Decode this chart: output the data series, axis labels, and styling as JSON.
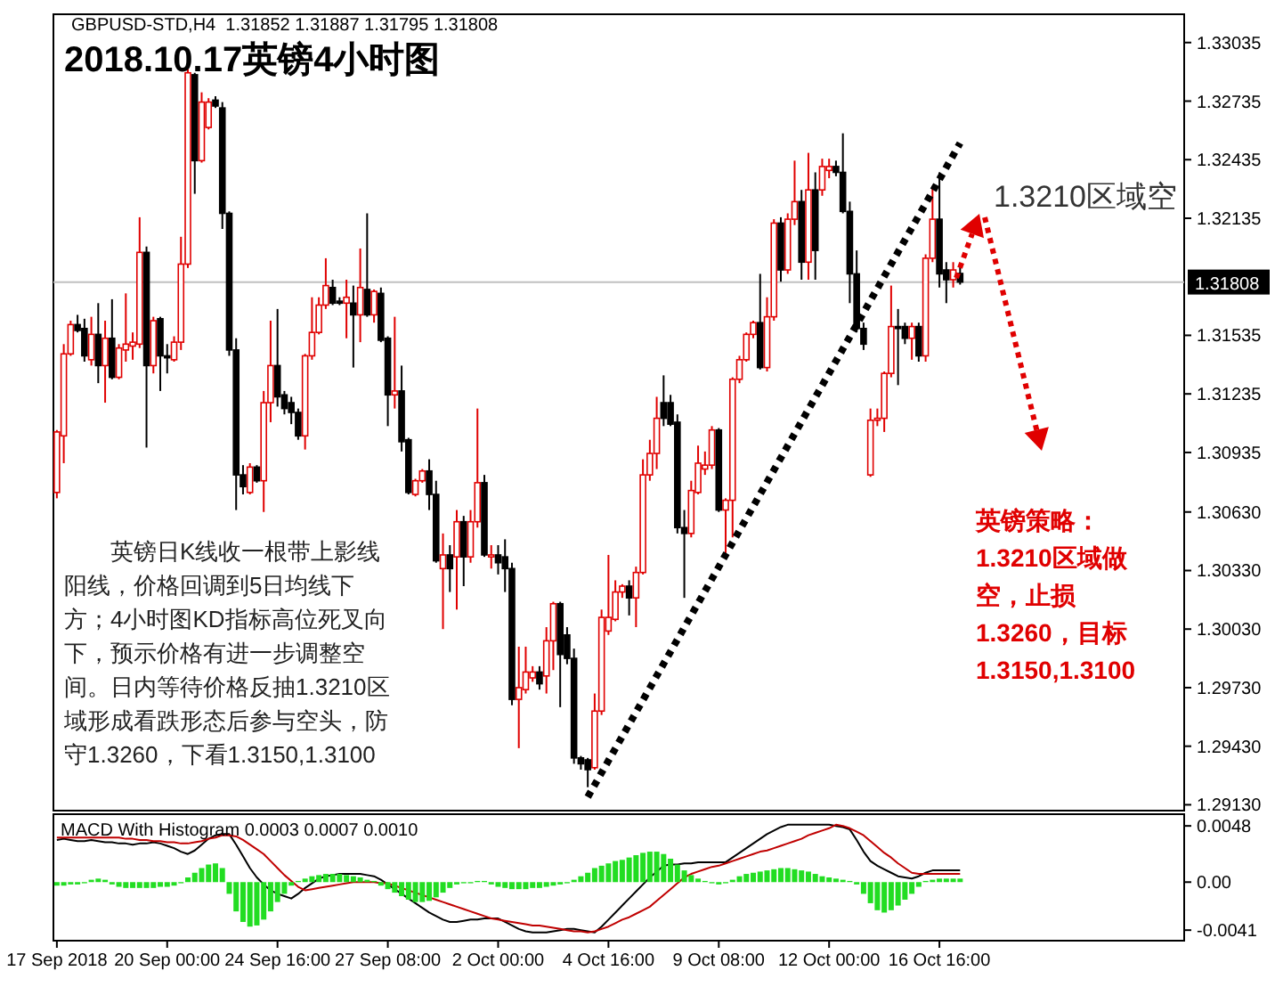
{
  "chart_data": [
    {
      "type": "candlestick",
      "title": "2018.10.17英镑4小时图",
      "categories": [
        null,
        null,
        null,
        null,
        null,
        null,
        null,
        null,
        null,
        null,
        null,
        null,
        null,
        null,
        null,
        null,
        null,
        null,
        null,
        null,
        null,
        null,
        null,
        null,
        null,
        null,
        null,
        null,
        null,
        null,
        null,
        null,
        null,
        null,
        null,
        null,
        null,
        null,
        null,
        null,
        null,
        null,
        null,
        null,
        null,
        null,
        null,
        null,
        null,
        null,
        null,
        null,
        null,
        null,
        null,
        null,
        null,
        null,
        null,
        null,
        null,
        null,
        null,
        null,
        null,
        null,
        null,
        null,
        null,
        null,
        null,
        null,
        null,
        null,
        null,
        null,
        null,
        null,
        null,
        null,
        null,
        null,
        null,
        null,
        null,
        null,
        null,
        null,
        null,
        null,
        null,
        null,
        null,
        null,
        null,
        null,
        null,
        null,
        null,
        null,
        null,
        null,
        null,
        null,
        null,
        null,
        null,
        null,
        null,
        null,
        null,
        null,
        null,
        null,
        null,
        null,
        null,
        null,
        null,
        null,
        null,
        null,
        null,
        null,
        null,
        null,
        null,
        null,
        null,
        null,
        null,
        null,
        null,
        null,
        null,
        null,
        null,
        null,
        null,
        null,
        null,
        null,
        null,
        null,
        null,
        null,
        null,
        null,
        null,
        null,
        null,
        null,
        null,
        null,
        null,
        null,
        null,
        null,
        null,
        null,
        null,
        null,
        null,
        null
      ],
      "ohlc": [
        [
          1.3073,
          1.3105,
          1.307,
          1.3104
        ],
        [
          1.3102,
          1.3149,
          1.3088,
          1.3144
        ],
        [
          1.3144,
          1.3161,
          1.3143,
          1.3159
        ],
        [
          1.3159,
          1.3164,
          1.3155,
          1.3156
        ],
        [
          1.3157,
          1.3162,
          1.314,
          1.3143
        ],
        [
          1.3141,
          1.3163,
          1.3138,
          1.3154
        ],
        [
          1.3154,
          1.317,
          1.3129,
          1.3138
        ],
        [
          1.3138,
          1.3161,
          1.3119,
          1.3152
        ],
        [
          1.3152,
          1.3172,
          1.3131,
          1.3132
        ],
        [
          1.3132,
          1.3149,
          1.3131,
          1.3147
        ],
        [
          1.3146,
          1.3175,
          1.314,
          1.3149
        ],
        [
          1.3148,
          1.3155,
          1.3141,
          1.315
        ],
        [
          1.3149,
          1.3214,
          1.3147,
          1.3196
        ],
        [
          1.3196,
          1.3199,
          1.3096,
          1.3138
        ],
        [
          1.3138,
          1.3163,
          1.3134,
          1.3161
        ],
        [
          1.3162,
          1.3163,
          1.3125,
          1.3143
        ],
        [
          1.3143,
          1.3149,
          1.3134,
          1.3142
        ],
        [
          1.3141,
          1.3153,
          1.314,
          1.315
        ],
        [
          1.315,
          1.3204,
          1.3146,
          1.319
        ],
        [
          1.319,
          1.329,
          1.3188,
          1.3288
        ],
        [
          1.3287,
          1.3288,
          1.3226,
          1.3243
        ],
        [
          1.3243,
          1.3278,
          1.3242,
          1.3273
        ],
        [
          1.326,
          1.3275,
          1.3259,
          1.3273
        ],
        [
          1.3274,
          1.3276,
          1.327,
          1.3271
        ],
        [
          1.327,
          1.3273,
          1.3208,
          1.3216
        ],
        [
          1.3216,
          1.3217,
          1.3143,
          1.3146
        ],
        [
          1.3146,
          1.3152,
          1.3064,
          1.3082
        ],
        [
          1.3082,
          1.3087,
          1.3072,
          1.3076
        ],
        [
          1.3073,
          1.3088,
          1.3072,
          1.3086
        ],
        [
          1.3086,
          1.3087,
          1.3078,
          1.3079
        ],
        [
          1.3079,
          1.3125,
          1.3063,
          1.3119
        ],
        [
          1.3119,
          1.3161,
          1.3109,
          1.3138
        ],
        [
          1.3138,
          1.3167,
          1.3117,
          1.3122
        ],
        [
          1.3123,
          1.3125,
          1.3113,
          1.3116
        ],
        [
          1.3119,
          1.3122,
          1.3108,
          1.3114
        ],
        [
          1.3114,
          1.3116,
          1.31,
          1.3102
        ],
        [
          1.3102,
          1.3144,
          1.3095,
          1.3143
        ],
        [
          1.3143,
          1.3173,
          1.3141,
          1.3155
        ],
        [
          1.3155,
          1.3173,
          1.3154,
          1.3169
        ],
        [
          1.3169,
          1.3193,
          1.3167,
          1.3179
        ],
        [
          1.3178,
          1.3182,
          1.3169,
          1.317
        ],
        [
          1.3171,
          1.3173,
          1.3169,
          1.317
        ],
        [
          1.317,
          1.3182,
          1.3152,
          1.3173
        ],
        [
          1.317,
          1.3179,
          1.3137,
          1.3164
        ],
        [
          1.3164,
          1.3198,
          1.315,
          1.3178
        ],
        [
          1.3177,
          1.3216,
          1.3163,
          1.3164
        ],
        [
          1.3164,
          1.3177,
          1.316,
          1.3176
        ],
        [
          1.3175,
          1.3178,
          1.315,
          1.3151
        ],
        [
          1.3152,
          1.3153,
          1.3107,
          1.3123
        ],
        [
          1.3123,
          1.3163,
          1.3116,
          1.3125
        ],
        [
          1.3125,
          1.3138,
          1.3094,
          1.3099
        ],
        [
          1.31,
          1.3101,
          1.3072,
          1.3073
        ],
        [
          1.3072,
          1.308,
          1.3071,
          1.3079
        ],
        [
          1.3079,
          1.3085,
          1.3078,
          1.3084
        ],
        [
          1.3084,
          1.309,
          1.3064,
          1.3072
        ],
        [
          1.3072,
          1.3079,
          1.3037,
          1.3038
        ],
        [
          1.3034,
          1.3052,
          1.3003,
          1.3041
        ],
        [
          1.3041,
          1.3046,
          1.3022,
          1.3034
        ],
        [
          1.304,
          1.3064,
          1.3013,
          1.3058
        ],
        [
          1.3058,
          1.3061,
          1.3025,
          1.304
        ],
        [
          1.304,
          1.3064,
          1.3037,
          1.3058
        ],
        [
          1.3058,
          1.3116,
          1.3055,
          1.3078
        ],
        [
          1.3078,
          1.3082,
          1.304,
          1.3041
        ],
        [
          1.304,
          1.3046,
          1.3034,
          1.3041
        ],
        [
          1.3041,
          1.3046,
          1.3031,
          1.3037
        ],
        [
          1.304,
          1.3049,
          1.3022,
          1.3034
        ],
        [
          1.3034,
          1.3037,
          1.2964,
          1.2967
        ],
        [
          1.2967,
          1.2994,
          1.2942,
          1.2973
        ],
        [
          1.2972,
          1.2994,
          1.297,
          1.2981
        ],
        [
          1.2978,
          1.2984,
          1.2976,
          1.2981
        ],
        [
          1.2981,
          1.2984,
          1.2972,
          1.2975
        ],
        [
          1.2979,
          1.3004,
          1.297,
          1.2997
        ],
        [
          1.2997,
          1.3017,
          1.2982,
          1.3016
        ],
        [
          1.3016,
          1.3017,
          1.2963,
          1.299
        ],
        [
          1.3,
          1.3004,
          1.2985,
          1.2988
        ],
        [
          1.2988,
          1.2993,
          1.2934,
          1.2937
        ],
        [
          1.2937,
          1.2938,
          1.2931,
          1.2934
        ],
        [
          1.2936,
          1.2937,
          1.2922,
          1.2931
        ],
        [
          1.2932,
          1.297,
          1.2931,
          1.2961
        ],
        [
          1.2961,
          1.3013,
          1.2959,
          1.3009
        ],
        [
          1.3002,
          1.3041,
          1.3,
          1.3009
        ],
        [
          1.3008,
          1.3028,
          1.3007,
          1.3022
        ],
        [
          1.3022,
          1.3026,
          1.3019,
          1.3025
        ],
        [
          1.3025,
          1.3028,
          1.301,
          1.3019
        ],
        [
          1.3019,
          1.3035,
          1.3004,
          1.3032
        ],
        [
          1.3032,
          1.309,
          1.3031,
          1.3082
        ],
        [
          1.3082,
          1.31,
          1.3079,
          1.3093
        ],
        [
          1.3093,
          1.3122,
          1.3085,
          1.3111
        ],
        [
          1.3119,
          1.3133,
          1.3107,
          1.3111
        ],
        [
          1.3119,
          1.3123,
          1.3107,
          1.3108
        ],
        [
          1.3109,
          1.3113,
          1.3052,
          1.3055
        ],
        [
          1.3055,
          1.3064,
          1.3019,
          1.3052
        ],
        [
          1.3052,
          1.3079,
          1.305,
          1.3074
        ],
        [
          1.3073,
          1.3097,
          1.3072,
          1.3088
        ],
        [
          1.3085,
          1.3094,
          1.3082,
          1.3087
        ],
        [
          1.3087,
          1.3107,
          1.3085,
          1.3105
        ],
        [
          1.3105,
          1.3106,
          1.3063,
          1.3064
        ],
        [
          1.3064,
          1.307,
          1.304,
          1.3069
        ],
        [
          1.3069,
          1.3132,
          1.305,
          1.3131
        ],
        [
          1.3131,
          1.3143,
          1.3129,
          1.3141
        ],
        [
          1.3141,
          1.3155,
          1.314,
          1.3154
        ],
        [
          1.3154,
          1.3161,
          1.3152,
          1.316
        ],
        [
          1.316,
          1.3185,
          1.3136,
          1.3137
        ],
        [
          1.3137,
          1.3173,
          1.3135,
          1.3163
        ],
        [
          1.3163,
          1.3213,
          1.3161,
          1.3211
        ],
        [
          1.3211,
          1.3214,
          1.3181,
          1.3187
        ],
        [
          1.3187,
          1.3216,
          1.3185,
          1.3213
        ],
        [
          1.3213,
          1.3243,
          1.321,
          1.3222
        ],
        [
          1.3222,
          1.3228,
          1.3182,
          1.3191
        ],
        [
          1.3191,
          1.3247,
          1.3182,
          1.3228
        ],
        [
          1.3228,
          1.3237,
          1.3182,
          1.3197
        ],
        [
          1.3228,
          1.3244,
          1.3225,
          1.324
        ],
        [
          1.3238,
          1.3244,
          1.3234,
          1.324
        ],
        [
          1.324,
          1.3243,
          1.3235,
          1.3237
        ],
        [
          1.3237,
          1.3257,
          1.3216,
          1.3217
        ],
        [
          1.3217,
          1.3222,
          1.317,
          1.3185
        ],
        [
          1.3185,
          1.3197,
          1.3155,
          1.3157
        ],
        [
          1.3157,
          1.316,
          1.3146,
          1.3149
        ],
        [
          1.3082,
          1.3116,
          1.3081,
          1.311
        ],
        [
          1.311,
          1.3116,
          1.3107,
          1.3111
        ],
        [
          1.3111,
          1.3135,
          1.3104,
          1.3134
        ],
        [
          1.3134,
          1.3179,
          1.3132,
          1.3158
        ],
        [
          1.3158,
          1.3167,
          1.3128,
          1.3157
        ],
        [
          1.3158,
          1.316,
          1.3149,
          1.3152
        ],
        [
          1.3152,
          1.316,
          1.3141,
          1.3158
        ],
        [
          1.3158,
          1.316,
          1.314,
          1.3143
        ],
        [
          1.3143,
          1.3195,
          1.314,
          1.3193
        ],
        [
          1.3193,
          1.323,
          1.3191,
          1.3213
        ],
        [
          1.3213,
          1.3237,
          1.3178,
          1.3185
        ],
        [
          1.3187,
          1.3191,
          1.317,
          1.3182
        ],
        [
          1.3182,
          1.3191,
          1.3178,
          1.3187
        ],
        [
          1.31852,
          1.31887,
          1.31795,
          1.31808
        ],
        null,
        null,
        null,
        null,
        null,
        null,
        null,
        null,
        null,
        null,
        null,
        null,
        null,
        null,
        null,
        null,
        null,
        null,
        null,
        null,
        null,
        null,
        null,
        null,
        null,
        null,
        null,
        null,
        null,
        null,
        null,
        null
      ],
      "colors": [
        "#e00000",
        "#e00000",
        "#e00000",
        "#000000",
        "#000000",
        "#e00000",
        "#000000",
        "#e00000",
        "#000000",
        "#e00000",
        "#e00000",
        "#e00000",
        "#e00000",
        "#000000",
        "#e00000",
        "#000000",
        "#000000",
        "#e00000",
        "#e00000",
        "#e00000",
        "#000000",
        "#e00000",
        "#e00000",
        "#000000",
        "#000000",
        "#000000",
        "#000000",
        "#000000",
        "#e00000",
        "#000000",
        "#e00000",
        "#e00000",
        "#000000",
        "#000000",
        "#000000",
        "#000000",
        "#e00000",
        "#e00000",
        "#e00000",
        "#e00000",
        "#000000",
        "#000000",
        "#e00000",
        "#000000",
        "#e00000",
        "#000000",
        "#e00000",
        "#000000",
        "#000000",
        "#e00000",
        "#000000",
        "#000000",
        "#e00000",
        "#e00000",
        "#000000",
        "#000000",
        "#e00000",
        "#000000",
        "#e00000",
        "#000000",
        "#e00000",
        "#e00000",
        "#000000",
        "#e00000",
        "#000000",
        "#000000",
        "#000000",
        "#e00000",
        "#e00000",
        "#e00000",
        "#000000",
        "#e00000",
        "#e00000",
        "#000000",
        "#000000",
        "#000000",
        "#000000",
        "#000000",
        "#e00000",
        "#e00000",
        "#e00000",
        "#e00000",
        "#e00000",
        "#000000",
        "#e00000",
        "#e00000",
        "#e00000",
        "#e00000",
        "#000000",
        "#000000",
        "#000000",
        "#000000",
        "#e00000",
        "#e00000",
        "#e00000",
        "#e00000",
        "#000000",
        "#e00000",
        "#e00000",
        "#e00000",
        "#e00000",
        "#e00000",
        "#000000",
        "#e00000",
        "#e00000",
        "#000000",
        "#e00000",
        "#e00000",
        "#000000",
        "#e00000",
        "#000000",
        "#e00000",
        "#e00000",
        "#000000",
        "#000000",
        "#000000",
        "#000000",
        "#000000",
        "#e00000",
        "#e00000",
        "#e00000",
        "#e00000",
        "#000000",
        "#000000",
        "#e00000",
        "#000000",
        "#e00000",
        "#e00000",
        "#000000",
        "#000000",
        "#e00000",
        "#000000",
        null,
        null,
        null,
        null,
        null,
        null,
        null,
        null,
        null,
        null,
        null,
        null,
        null,
        null,
        null,
        null,
        null,
        null,
        null,
        null,
        null,
        null,
        null,
        null,
        null,
        null,
        null,
        null,
        null,
        null,
        null,
        null
      ],
      "ylim": [
        1.291,
        1.3318
      ],
      "yticks": [
        1.33035,
        1.32735,
        1.32435,
        1.32135,
        1.31535,
        1.31235,
        1.30935,
        {
          "value": 1.3063,
          "label": "1.30630"
        },
        {
          "value": 1.3033,
          "label": "1.30330"
        },
        {
          "value": 1.3003,
          "label": "1.30030"
        },
        {
          "value": 1.2973,
          "label": "1.29730"
        },
        {
          "value": 1.2943,
          "label": "1.29430"
        },
        {
          "value": 1.2913,
          "label": "1.29130"
        }
      ],
      "tick_labels": "y",
      "ref_lines": [
        {
          "axis": "y",
          "value": 1.31808,
          "label": "1.31808",
          "color": "#c0c0c0"
        }
      ],
      "series": [
        {
          "type": "line",
          "values": [
            null,
            null,
            null,
            null,
            null,
            null,
            null,
            null,
            null,
            null,
            null,
            null,
            null,
            null,
            null,
            null,
            null,
            null,
            null,
            null,
            null,
            null,
            null,
            null,
            null,
            null,
            null,
            null,
            null,
            null,
            null,
            null,
            null,
            null,
            null,
            null,
            null,
            null,
            null,
            null,
            null,
            null,
            null,
            null,
            null,
            null,
            null,
            null,
            null,
            null,
            null,
            null,
            null,
            null,
            null,
            null,
            null,
            null,
            null,
            null,
            null,
            null,
            null,
            null,
            null,
            null,
            null,
            null,
            null,
            null,
            null,
            null,
            null,
            null,
            null,
            null,
            null,
            1.2917,
            null,
            null,
            null,
            null,
            null,
            null,
            null,
            null,
            null,
            null,
            null,
            null,
            null,
            null,
            null,
            null,
            null,
            null,
            null,
            null,
            null,
            null,
            null,
            null,
            null,
            null,
            null,
            null,
            null,
            null,
            null,
            null,
            null,
            null,
            null,
            null,
            null,
            null,
            null,
            null,
            null,
            null,
            null,
            null,
            null,
            null,
            null,
            null,
            null,
            null,
            null,
            null,
            null,
            1.3252,
            null,
            null,
            null,
            null,
            null,
            null,
            null,
            null,
            null,
            null,
            null,
            null,
            null,
            null,
            null,
            null,
            null,
            null,
            null,
            null,
            null,
            null,
            null,
            null,
            null,
            null,
            null,
            null,
            null,
            null,
            null,
            null
          ],
          "color": "#000000",
          "line_style": "dotted"
        }
      ],
      "annotations": [
        "GBPUSD-STD,H4  1.31852 1.31887 1.31795 1.31808",
        "英镑日K线收一根带上影线阳线，价格回调到5日均线下方；4小时图KD指标高位死叉向下，预示价格有进一步调整空间。日内等待价格反抽1.3210区域形成看跌形态后参与空头，防守1.3260，下看1.3150,1.3100",
        "英镑策略：1.3210区域做空，止损1.3260，目标1.3150,1.3100",
        "1.3210区域空"
      ]
    },
    {
      "type": "bar",
      "title": "MACD With Histogram 0.0003 0.0007 0.0010",
      "categories": [
        "17 Sep 2018",
        null,
        null,
        null,
        null,
        null,
        null,
        null,
        null,
        null,
        null,
        null,
        null,
        null,
        null,
        null,
        "20 Sep 00:00",
        null,
        null,
        null,
        null,
        null,
        null,
        null,
        null,
        null,
        null,
        null,
        null,
        null,
        null,
        null,
        "24 Sep 16:00",
        null,
        null,
        null,
        null,
        null,
        null,
        null,
        null,
        null,
        null,
        null,
        null,
        null,
        null,
        null,
        "27 Sep 08:00",
        null,
        null,
        null,
        null,
        null,
        null,
        null,
        null,
        null,
        null,
        null,
        null,
        null,
        null,
        null,
        "2 Oct 00:00",
        null,
        null,
        null,
        null,
        null,
        null,
        null,
        null,
        null,
        null,
        null,
        null,
        null,
        null,
        null,
        "4 Oct 16:00",
        null,
        null,
        null,
        null,
        null,
        null,
        null,
        null,
        null,
        null,
        null,
        null,
        null,
        null,
        null,
        "9 Oct 08:00",
        null,
        null,
        null,
        null,
        null,
        null,
        null,
        null,
        null,
        null,
        null,
        null,
        null,
        null,
        null,
        "12 Oct 00:00",
        null,
        null,
        null,
        null,
        null,
        null,
        null,
        null,
        null,
        null,
        null,
        null,
        null,
        null,
        null,
        "16 Oct 16:00",
        null,
        null,
        null,
        null,
        null,
        null,
        null,
        null,
        null,
        null,
        null,
        null,
        null,
        null,
        null,
        null,
        null,
        null,
        null,
        null,
        null,
        null,
        null,
        null,
        null,
        null,
        null,
        null,
        null,
        null,
        null,
        null,
        null,
        null,
        null
      ],
      "series": [
        {
          "color": "#22dd22",
          "values": [
            -0.0003,
            -0.0003,
            -0.0002,
            -0.0002,
            -0.0001,
            0.0002,
            0.0003,
            0.0002,
            -0.0002,
            -0.0004,
            -0.0005,
            -0.0005,
            -0.0005,
            -0.0005,
            -0.0005,
            -0.0004,
            -0.0004,
            -0.0003,
            -0.0001,
            0.0004,
            0.0008,
            0.0012,
            0.0015,
            0.0016,
            0.0012,
            -0.001,
            -0.0025,
            -0.0034,
            -0.0038,
            -0.0037,
            -0.0032,
            -0.0025,
            -0.0017,
            -0.001,
            -0.0003,
            0.0001,
            0.0003,
            0.0005,
            0.0006,
            0.0007,
            0.0007,
            0.0007,
            0.0006,
            0.0005,
            0.0004,
            0.0002,
            0.0001,
            -0.0003,
            -0.0006,
            -0.0009,
            -0.0012,
            -0.0015,
            -0.0017,
            -0.0017,
            -0.0016,
            -0.0013,
            -0.0009,
            -0.0005,
            -0.0002,
            -0.0001,
            -0.0001,
            0.0001,
            0.0001,
            -0.0002,
            -0.0004,
            -0.0005,
            -0.0006,
            -0.0006,
            -0.0006,
            -0.0005,
            -0.0005,
            -0.0004,
            -0.0003,
            -0.0002,
            -0.0001,
            0.0002,
            0.0005,
            0.0008,
            0.0012,
            0.0014,
            0.0016,
            0.0018,
            0.0019,
            0.0021,
            0.0023,
            0.0025,
            0.0026,
            0.0026,
            0.0024,
            0.002,
            0.0015,
            0.001,
            0.0006,
            0.0003,
            0.0001,
            -0.0001,
            -0.0002,
            -0.0001,
            0.0002,
            0.0005,
            0.0007,
            0.0008,
            0.0009,
            0.001,
            0.0011,
            0.0012,
            0.0012,
            0.0011,
            0.001,
            0.0009,
            0.0007,
            0.0005,
            0.0004,
            0.0003,
            0.0002,
            0.0001,
            -0.0002,
            -0.001,
            -0.0018,
            -0.0024,
            -0.0026,
            -0.0024,
            -0.002,
            -0.0015,
            -0.001,
            -0.0004,
            0.0001,
            0.0002,
            0.0003,
            0.0003,
            0.0003,
            0.0003,
            null,
            null,
            null,
            null,
            null,
            null,
            null,
            null,
            null,
            null,
            null,
            null,
            null,
            null,
            null,
            null,
            null,
            null,
            null,
            null,
            null,
            null,
            null,
            null,
            null,
            null,
            null,
            null,
            null,
            null,
            null,
            null
          ]
        },
        {
          "type": "line",
          "color": "#000000",
          "values": [
            0.0036,
            0.0037,
            0.0036,
            0.0035,
            0.0035,
            0.0036,
            0.0035,
            0.0034,
            0.0034,
            0.0033,
            0.0033,
            0.0032,
            0.0033,
            0.0033,
            0.0034,
            0.0033,
            0.0031,
            0.0029,
            0.0026,
            0.0024,
            0.0027,
            0.0032,
            0.0037,
            0.004,
            0.0041,
            0.0041,
            0.0032,
            0.0022,
            0.0012,
            0.0004,
            -0.0002,
            -0.0007,
            -0.001,
            -0.0012,
            -0.0014,
            -0.001,
            -0.0005,
            -0.0001,
            0.0003,
            0.0005,
            0.0006,
            0.0007,
            0.0007,
            0.0007,
            0.0007,
            0.0006,
            0.0005,
            0.0002,
            -0.0002,
            -0.0006,
            -0.001,
            -0.0014,
            -0.0018,
            -0.0022,
            -0.0026,
            -0.0029,
            -0.0032,
            -0.0034,
            -0.0034,
            -0.0033,
            -0.0032,
            -0.0032,
            -0.0031,
            -0.0031,
            -0.0031,
            -0.0034,
            -0.0037,
            -0.004,
            -0.0042,
            -0.0043,
            -0.0043,
            -0.0043,
            -0.0042,
            -0.0041,
            -0.004,
            -0.004,
            -0.0041,
            -0.0042,
            -0.0043,
            -0.0038,
            -0.0032,
            -0.0026,
            -0.002,
            -0.0014,
            -0.0008,
            -0.0002,
            0.0004,
            0.0009,
            0.0014,
            0.0015,
            0.0015,
            0.0016,
            0.0016,
            0.0017,
            0.0017,
            0.0017,
            0.0017,
            0.0017,
            0.0021,
            0.0025,
            0.0029,
            0.0033,
            0.0037,
            0.0041,
            0.0044,
            0.0047,
            0.0049,
            0.0049,
            0.0049,
            0.0049,
            0.0049,
            0.0049,
            0.0049,
            0.0048,
            0.0047,
            0.0045,
            0.0036,
            0.0026,
            0.0018,
            0.0014,
            0.0011,
            0.0008,
            0.0005,
            0.0004,
            0.0003,
            0.0005,
            0.0008,
            0.001,
            0.001,
            0.001,
            0.001,
            0.001,
            null,
            null,
            null,
            null,
            null,
            null,
            null,
            null,
            null,
            null,
            null,
            null,
            null,
            null,
            null,
            null,
            null,
            null,
            null,
            null,
            null,
            null,
            null,
            null,
            null,
            null,
            null,
            null,
            null,
            null,
            null,
            null
          ]
        },
        {
          "type": "line",
          "color": "#c00000",
          "values": [
            0.0038,
            0.0038,
            0.0038,
            0.0038,
            0.0038,
            0.0038,
            0.0038,
            0.0038,
            0.0038,
            0.0038,
            0.0037,
            0.0037,
            0.0036,
            0.0036,
            0.0035,
            0.0035,
            0.0034,
            0.0034,
            0.0033,
            0.0033,
            0.0034,
            0.0035,
            0.0037,
            0.0038,
            0.004,
            0.004,
            0.0039,
            0.0036,
            0.0032,
            0.0028,
            0.0024,
            0.0018,
            0.0012,
            0.0006,
            0.0001,
            -0.0004,
            -0.0007,
            -0.0006,
            -0.0005,
            -0.0004,
            -0.0003,
            -0.0002,
            -0.0001,
            0.0,
            0.0,
            0.0,
            0.0,
            -0.0001,
            -0.0001,
            -0.0003,
            -0.0005,
            -0.0007,
            -0.0009,
            -0.0011,
            -0.0013,
            -0.0015,
            -0.0017,
            -0.0019,
            -0.0021,
            -0.0023,
            -0.0025,
            -0.0027,
            -0.0029,
            -0.0031,
            -0.0032,
            -0.0033,
            -0.0034,
            -0.0035,
            -0.0036,
            -0.0037,
            -0.0037,
            -0.0038,
            -0.0039,
            -0.004,
            -0.0041,
            -0.0042,
            -0.0042,
            -0.0043,
            -0.0042,
            -0.004,
            -0.0038,
            -0.0035,
            -0.0032,
            -0.003,
            -0.0027,
            -0.0024,
            -0.0021,
            -0.0016,
            -0.0011,
            -0.0006,
            -0.0001,
            0.0004,
            0.0007,
            0.0009,
            0.0011,
            0.0013,
            0.0014,
            0.0016,
            0.0018,
            0.002,
            0.0022,
            0.0024,
            0.0026,
            0.0027,
            0.0029,
            0.0031,
            0.0033,
            0.0035,
            0.0037,
            0.004,
            0.0042,
            0.0044,
            0.0046,
            0.0049,
            0.0048,
            0.0046,
            0.0043,
            0.004,
            0.0035,
            0.003,
            0.0025,
            0.0021,
            0.0016,
            0.0012,
            0.0008,
            0.0007,
            0.0007,
            0.0007,
            0.0007,
            0.0007,
            0.0007,
            0.0007,
            null,
            null,
            null,
            null,
            null,
            null,
            null,
            null,
            null,
            null,
            null,
            null,
            null,
            null,
            null,
            null,
            null,
            null,
            null,
            null,
            null,
            null,
            null,
            null,
            null,
            null,
            null,
            null,
            null,
            null,
            null,
            null
          ]
        }
      ],
      "ylim": [
        -0.005,
        0.0058
      ],
      "yticks": [
        {
          "value": 0.0048,
          "label": "0.0048"
        },
        {
          "value": 0,
          "label": "0.00"
        },
        {
          "value": -0.0041,
          "label": "-0.0041"
        }
      ]
    }
  ]
}
